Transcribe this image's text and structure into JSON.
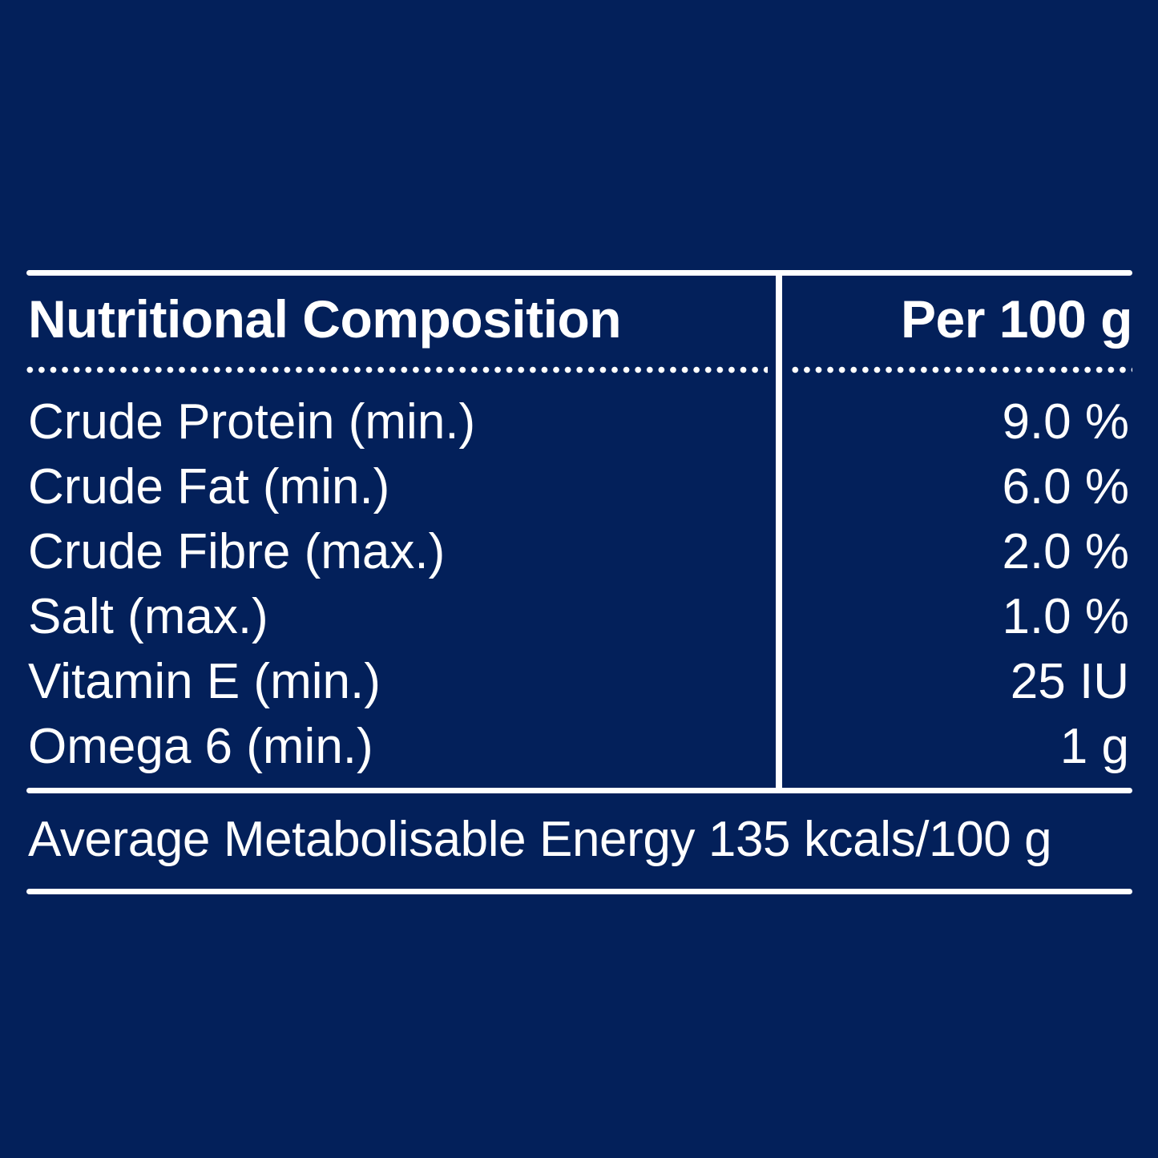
{
  "table": {
    "header": {
      "label": "Nutritional Composition",
      "value": "Per 100 g"
    },
    "rows": [
      {
        "label": "Crude Protein (min.)",
        "value": "9.0 %"
      },
      {
        "label": "Crude Fat (min.)",
        "value": "6.0 %"
      },
      {
        "label": "Crude Fibre (max.)",
        "value": "2.0 %"
      },
      {
        "label": "Salt (max.)",
        "value": "1.0 %"
      },
      {
        "label": "Vitamin E (min.)",
        "value": "25 IU"
      },
      {
        "label": "Omega 6 (min.)",
        "value": "1 g"
      }
    ],
    "footer": "Average Metabolisable Energy 135 kcals/100 g"
  },
  "colors": {
    "background": "#03205a",
    "text": "#ffffff"
  }
}
